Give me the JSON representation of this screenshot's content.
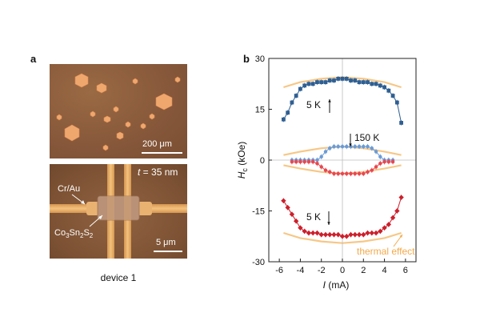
{
  "figure": {
    "panel_a_label": "a",
    "panel_b_label": "b",
    "scale_bar_top": "200 μm",
    "scale_bar_bottom": "5 μm",
    "thickness_label": "t = 35 nm",
    "thickness_var": "t",
    "thickness_value": " = 35 nm",
    "electrode_label": "Cr/Au",
    "crystal_label": "Co3Sn2S2",
    "crystal_parts": [
      "Co",
      "3",
      "Sn",
      "2",
      "S",
      "2"
    ],
    "caption": "device 1"
  },
  "chart_data": {
    "type": "scatter",
    "xlabel": "I (mA)",
    "xlabel_var": "I",
    "xlabel_unit": " (mA)",
    "ylabel": "Hc (kOe)",
    "ylabel_var": "H",
    "ylabel_sub": "c",
    "ylabel_unit": " (kOe)",
    "xlim": [
      -7,
      7
    ],
    "ylim": [
      -30,
      30
    ],
    "xticks": [
      -6,
      -4,
      -2,
      0,
      2,
      4,
      6
    ],
    "yticks": [
      -30,
      -15,
      0,
      15,
      30
    ],
    "zero_lines": true,
    "annotations": [
      "5 K",
      "150 K",
      "5 K",
      "thermal effect"
    ],
    "colors": {
      "blue_5K": "#2f5f92",
      "red_5K": "#cc1f2b",
      "blue_150K": "#6a9bd6",
      "red_150K": "#e8474f",
      "thermal": "#f4b45e"
    },
    "series": [
      {
        "key": "blue_5K",
        "marker": "square",
        "x": [
          -5.6,
          -5.2,
          -4.8,
          -4.4,
          -4.0,
          -3.6,
          -3.2,
          -2.8,
          -2.4,
          -2.0,
          -1.6,
          -1.2,
          -0.8,
          -0.4,
          0.0,
          0.4,
          0.8,
          1.2,
          1.6,
          2.0,
          2.4,
          2.8,
          3.2,
          3.6,
          4.0,
          4.4,
          4.8,
          5.2,
          5.6
        ],
        "y": [
          12,
          14,
          17,
          19,
          21,
          22,
          22.5,
          22.5,
          23,
          23,
          23,
          23.5,
          23.5,
          24,
          24,
          24,
          23.5,
          23.5,
          23,
          23,
          23,
          22.5,
          22.5,
          22,
          21.5,
          20.5,
          19,
          17,
          11
        ]
      },
      {
        "key": "red_5K",
        "marker": "diamond",
        "x": [
          -5.6,
          -5.2,
          -4.8,
          -4.4,
          -4.0,
          -3.6,
          -3.2,
          -2.8,
          -2.4,
          -2.0,
          -1.6,
          -1.2,
          -0.8,
          -0.4,
          0.0,
          0.4,
          0.8,
          1.2,
          1.6,
          2.0,
          2.4,
          2.8,
          3.2,
          3.6,
          4.0,
          4.4,
          4.8,
          5.2,
          5.6
        ],
        "y": [
          -12,
          -14,
          -16,
          -18,
          -20,
          -21,
          -21.5,
          -21.5,
          -21.5,
          -22,
          -22,
          -22,
          -22,
          -22,
          -22.5,
          -22.5,
          -22,
          -22,
          -22,
          -22,
          -21.5,
          -21.5,
          -21.5,
          -21,
          -20,
          -19,
          -17,
          -15,
          -11
        ]
      },
      {
        "key": "blue_150K",
        "marker": "circle",
        "x": [
          -4.8,
          -4.4,
          -4.0,
          -3.6,
          -3.2,
          -2.8,
          -2.4,
          -2.0,
          -1.6,
          -1.2,
          -0.8,
          -0.4,
          0.0,
          0.4,
          0.8,
          1.2,
          1.6,
          2.0,
          2.4,
          2.8,
          3.2,
          3.6,
          4.0,
          4.4,
          4.8
        ],
        "y": [
          0,
          0,
          0,
          0,
          0,
          0,
          0,
          1,
          2.5,
          3.5,
          4,
          4,
          4,
          4,
          4,
          4,
          4,
          4,
          4,
          3.5,
          2.5,
          1,
          0,
          0,
          0
        ]
      },
      {
        "key": "red_150K",
        "marker": "circle",
        "x": [
          -4.8,
          -4.4,
          -4.0,
          -3.6,
          -3.2,
          -2.8,
          -2.4,
          -2.0,
          -1.6,
          -1.2,
          -0.8,
          -0.4,
          0.0,
          0.4,
          0.8,
          1.2,
          1.6,
          2.0,
          2.4,
          2.8,
          3.2,
          3.6,
          4.0,
          4.4,
          4.8
        ],
        "y": [
          -0.5,
          -0.5,
          -0.5,
          -0.5,
          -0.5,
          -0.5,
          -1,
          -2,
          -3,
          -3.5,
          -4,
          -4,
          -4,
          -4,
          -4,
          -4,
          -4,
          -4,
          -3.5,
          -3,
          -2,
          -1,
          -0.5,
          -0.5,
          -0.5
        ]
      }
    ],
    "thermal_curves": [
      {
        "x": [
          -5.6,
          -4,
          -2,
          0,
          2,
          4,
          5.6
        ],
        "y": [
          21.5,
          23,
          24,
          24.5,
          24,
          23,
          21.5
        ]
      },
      {
        "x": [
          -5.6,
          -4,
          -2,
          0,
          2,
          4,
          5.6
        ],
        "y": [
          -21.5,
          -23,
          -24,
          -24.5,
          -24,
          -23,
          -21.5
        ]
      },
      {
        "x": [
          -5.6,
          -4,
          -2,
          0,
          2,
          4,
          5.6
        ],
        "y": [
          1.5,
          2.5,
          3.5,
          4,
          3.5,
          2.5,
          1.5
        ]
      },
      {
        "x": [
          -5.6,
          -4,
          -2,
          0,
          2,
          4,
          5.6
        ],
        "y": [
          -1.5,
          -2.5,
          -3.5,
          -4,
          -3.5,
          -2.5,
          -1.5
        ]
      }
    ]
  }
}
